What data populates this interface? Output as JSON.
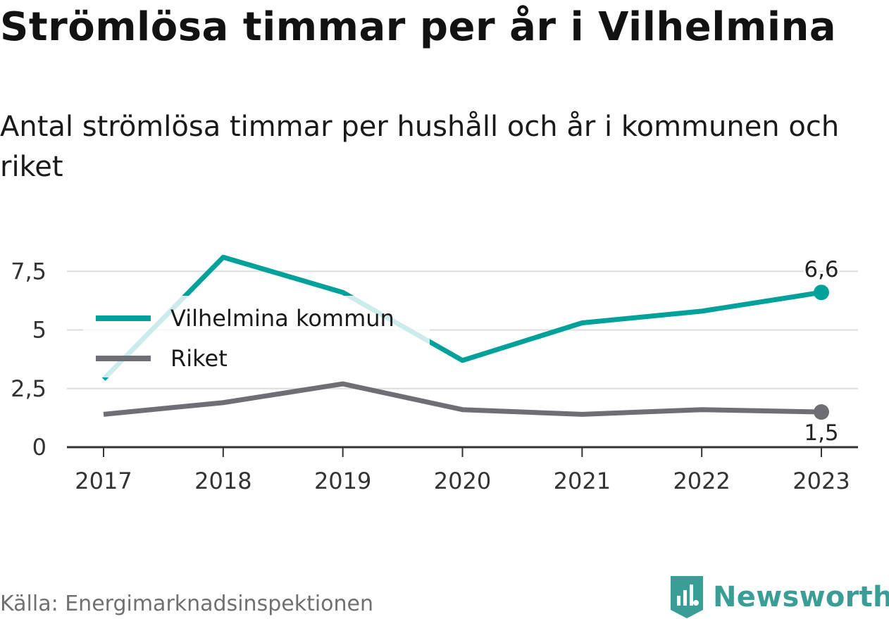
{
  "header": {
    "title": "Strömlösa timmar per år i Vilhelmina",
    "subtitle": "Antal strömlösa timmar per hushåll och år i kommunen och riket"
  },
  "footer": {
    "source": "Källa: Energimarknadsinspektionen",
    "brand": "Newsworthy"
  },
  "colors": {
    "vilhelmina": "#00A19A",
    "riket": "#6F6E74",
    "grid": "#dddddd",
    "axis": "#333333",
    "brand": "#3a9e96"
  },
  "chart_data": {
    "type": "line",
    "categories": [
      "2017",
      "2018",
      "2019",
      "2020",
      "2021",
      "2022",
      "2023"
    ],
    "series": [
      {
        "name": "Vilhelmina kommun",
        "values": [
          2.9,
          8.1,
          6.6,
          3.7,
          5.3,
          5.8,
          6.6
        ],
        "end_label": "6,6"
      },
      {
        "name": "Riket",
        "values": [
          1.4,
          1.9,
          2.7,
          1.6,
          1.4,
          1.6,
          1.5
        ],
        "end_label": "1,5"
      }
    ],
    "yticks": [
      {
        "value": 0,
        "label": "0"
      },
      {
        "value": 2.5,
        "label": "2,5"
      },
      {
        "value": 5,
        "label": "5"
      },
      {
        "value": 7.5,
        "label": "7,5"
      }
    ],
    "ylim": [
      0,
      8.5
    ],
    "grid": true,
    "legend": "top-left"
  }
}
